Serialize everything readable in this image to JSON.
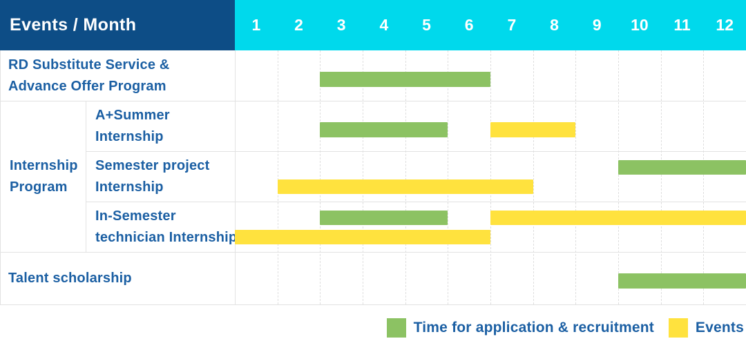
{
  "colors": {
    "header_bg": "#0d4d86",
    "month_bar_bg": "#00d9ec",
    "header_text": "#ffffff",
    "green": "#8cc263",
    "yellow": "#ffe23e",
    "label_text": "#1b5fa3",
    "grid_line": "#e2e2e2",
    "month_grid_dash": "#dedede"
  },
  "table": {
    "corner_label": "Events / Month"
  },
  "months": [
    "1",
    "2",
    "3",
    "4",
    "5",
    "6",
    "7",
    "8",
    "9",
    "10",
    "11",
    "12"
  ],
  "rows": [
    {
      "label": "RD Substitute Service & Advance Offer Program",
      "lines": [
        "RD Substitute Service &",
        "Advance Offer Program"
      ],
      "bars": [
        {
          "color": "green",
          "start": 3,
          "end": 6,
          "lane": "single"
        }
      ]
    },
    {
      "label": "Internship Program",
      "lines": [
        "Internship",
        "Program"
      ],
      "children": [
        {
          "label": "A+Summer Internship",
          "lines": [
            "A+Summer",
            "Internship"
          ],
          "bars": [
            {
              "color": "green",
              "start": 3,
              "end": 5,
              "lane": "single"
            },
            {
              "color": "yellow",
              "start": 7,
              "end": 8,
              "lane": "single"
            }
          ]
        },
        {
          "label": "Semester project Internship",
          "lines": [
            "Semester project",
            "Internship"
          ],
          "bars": [
            {
              "color": "green",
              "start": 10,
              "end": 12,
              "lane": "top"
            },
            {
              "color": "yellow",
              "start": 2,
              "end": 7,
              "lane": "bottom"
            }
          ]
        },
        {
          "label": "In-Semester technician Internship",
          "lines": [
            "In-Semester",
            "technician Internship"
          ],
          "bars": [
            {
              "color": "green",
              "start": 3,
              "end": 5,
              "lane": "top"
            },
            {
              "color": "yellow",
              "start": 7,
              "end": 12,
              "lane": "top"
            },
            {
              "color": "yellow",
              "start": 1,
              "end": 6,
              "lane": "bottom"
            }
          ]
        }
      ]
    },
    {
      "label": "Talent scholarship",
      "lines": [
        "Talent scholarship"
      ],
      "bars": [
        {
          "color": "green",
          "start": 10,
          "end": 12,
          "lane": "single"
        }
      ]
    }
  ],
  "legend": {
    "items": [
      {
        "color": "green",
        "label": "Time for application & recruitment"
      },
      {
        "color": "yellow",
        "label": "Events"
      }
    ]
  },
  "chart_data": {
    "type": "gantt",
    "title": "Events / Month",
    "x_axis": {
      "label": "Month",
      "ticks": [
        1,
        2,
        3,
        4,
        5,
        6,
        7,
        8,
        9,
        10,
        11,
        12
      ],
      "range": [
        1,
        12
      ]
    },
    "grid": true,
    "legend_position": "bottom-right",
    "legend": [
      {
        "label": "Time for application & recruitment",
        "color": "#8cc263"
      },
      {
        "label": "Events",
        "color": "#ffe23e"
      }
    ],
    "tasks": [
      {
        "group": "",
        "name": "RD Substitute Service & Advance Offer Program",
        "bars": [
          {
            "series": "Time for application & recruitment",
            "start_month": 3,
            "end_month": 6
          }
        ]
      },
      {
        "group": "Internship Program",
        "name": "A+Summer Internship",
        "bars": [
          {
            "series": "Time for application & recruitment",
            "start_month": 3,
            "end_month": 5
          },
          {
            "series": "Events",
            "start_month": 7,
            "end_month": 8
          }
        ]
      },
      {
        "group": "Internship Program",
        "name": "Semester project Internship",
        "bars": [
          {
            "series": "Time for application & recruitment",
            "start_month": 10,
            "end_month": 12
          },
          {
            "series": "Events",
            "start_month": 2,
            "end_month": 7
          }
        ]
      },
      {
        "group": "Internship Program",
        "name": "In-Semester technician Internship",
        "bars": [
          {
            "series": "Time for application & recruitment",
            "start_month": 3,
            "end_month": 5
          },
          {
            "series": "Events",
            "start_month": 7,
            "end_month": 12
          },
          {
            "series": "Events",
            "start_month": 1,
            "end_month": 6
          }
        ]
      },
      {
        "group": "",
        "name": "Talent scholarship",
        "bars": [
          {
            "series": "Time for application & recruitment",
            "start_month": 10,
            "end_month": 12
          }
        ]
      }
    ]
  }
}
